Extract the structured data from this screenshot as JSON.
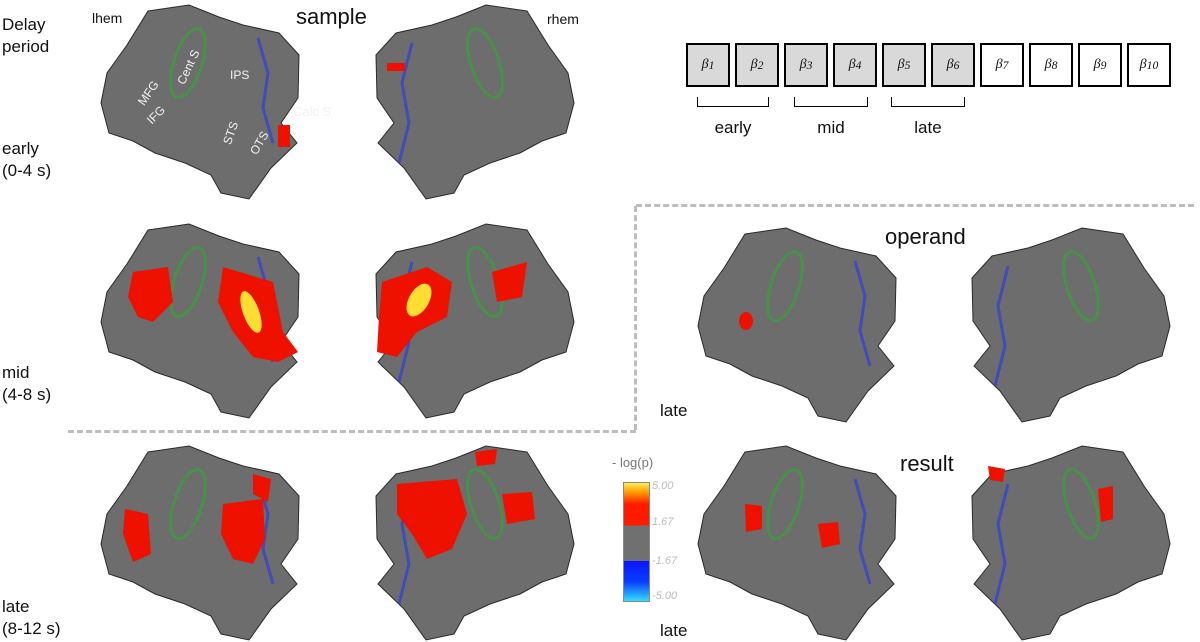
{
  "labels": {
    "delay_period": "Delay\nperiod",
    "early": "early\n(0-4 s)",
    "mid": "mid\n(4-8 s)",
    "late": "late\n(8-12 s)",
    "late_operand": "late",
    "late_result": "late"
  },
  "hemispheres": {
    "left": "lhem",
    "right": "rhem"
  },
  "titles": {
    "sample": "sample",
    "operand": "operand",
    "result": "result"
  },
  "anatomy": [
    "MFG",
    "Cent S",
    "IPS",
    "IFG",
    "STS",
    "OTS",
    "Calc S"
  ],
  "betas": [
    {
      "sub": "1",
      "shaded": true
    },
    {
      "sub": "2",
      "shaded": true
    },
    {
      "sub": "3",
      "shaded": true
    },
    {
      "sub": "4",
      "shaded": true
    },
    {
      "sub": "5",
      "shaded": true
    },
    {
      "sub": "6",
      "shaded": true
    },
    {
      "sub": "7",
      "shaded": false
    },
    {
      "sub": "8",
      "shaded": false
    },
    {
      "sub": "9",
      "shaded": false
    },
    {
      "sub": "10",
      "shaded": false
    }
  ],
  "beta_symbol": "β",
  "windows": [
    "early",
    "mid",
    "late"
  ],
  "colorbar": {
    "title": "- log(p)",
    "ticks": [
      "5.00",
      "1.67",
      "-1.67",
      "-5.00"
    ],
    "colors": {
      "max": "#ffee55",
      "pos": "#ff1a00",
      "neutral": "#707070",
      "neg": "#0a14ff",
      "min": "#33ddff"
    }
  },
  "colors": {
    "brain": "#6d6d6d",
    "brain_dark": "#4a4a4a",
    "activation": "#ee1100",
    "hot": "#ffdd33",
    "green_roi": "#3f9a3f",
    "blue_roi": "#3344cc"
  }
}
